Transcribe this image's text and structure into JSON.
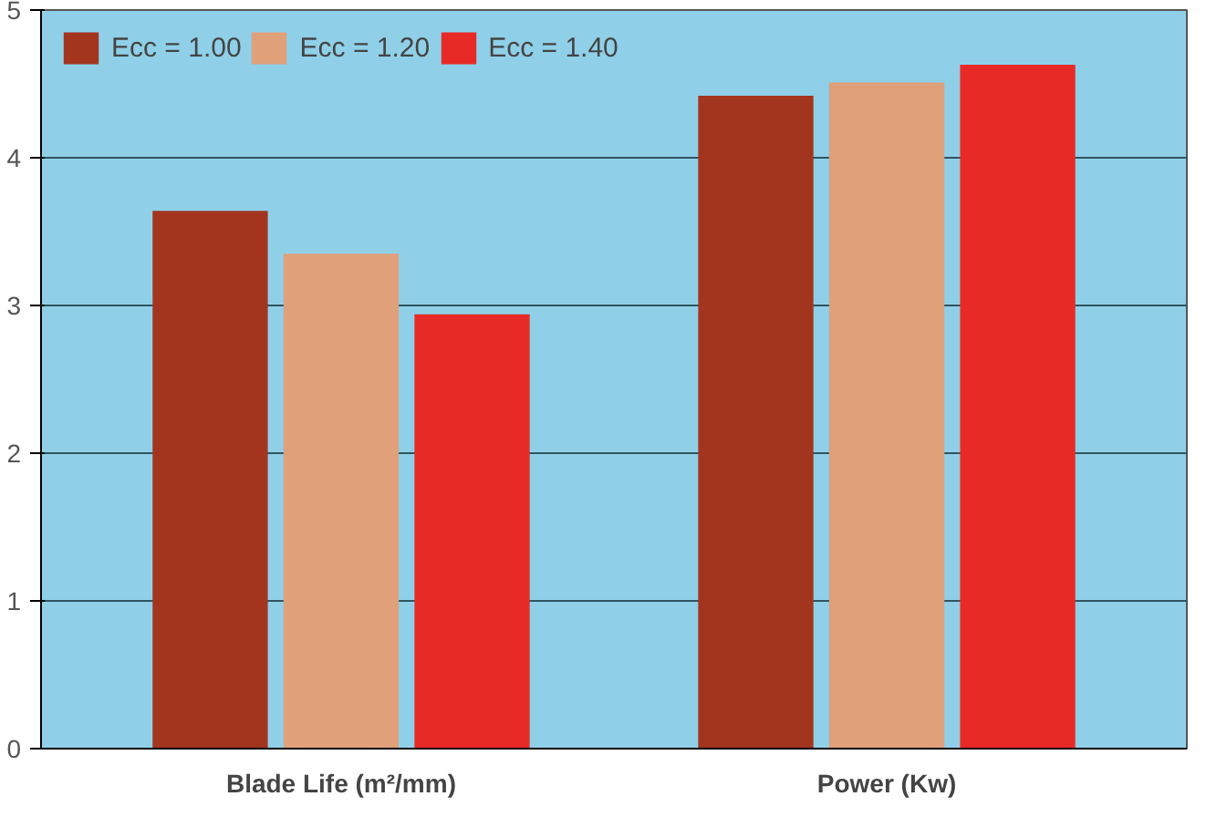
{
  "chart_data": {
    "type": "bar",
    "categories": [
      "Blade Life (m²/mm)",
      "Power (Kw)"
    ],
    "series": [
      {
        "name": "Ecc = 1.00",
        "color": "#a3351f",
        "values": [
          3.64,
          4.42
        ]
      },
      {
        "name": "Ecc = 1.20",
        "color": "#e0a07a",
        "values": [
          3.35,
          4.51
        ]
      },
      {
        "name": "Ecc = 1.40",
        "color": "#e82a26",
        "values": [
          2.94,
          4.63
        ]
      }
    ],
    "ylim": [
      0,
      5
    ],
    "yticks": [
      0,
      1,
      2,
      3,
      4,
      5
    ],
    "grid": "y",
    "legend": "top left"
  }
}
